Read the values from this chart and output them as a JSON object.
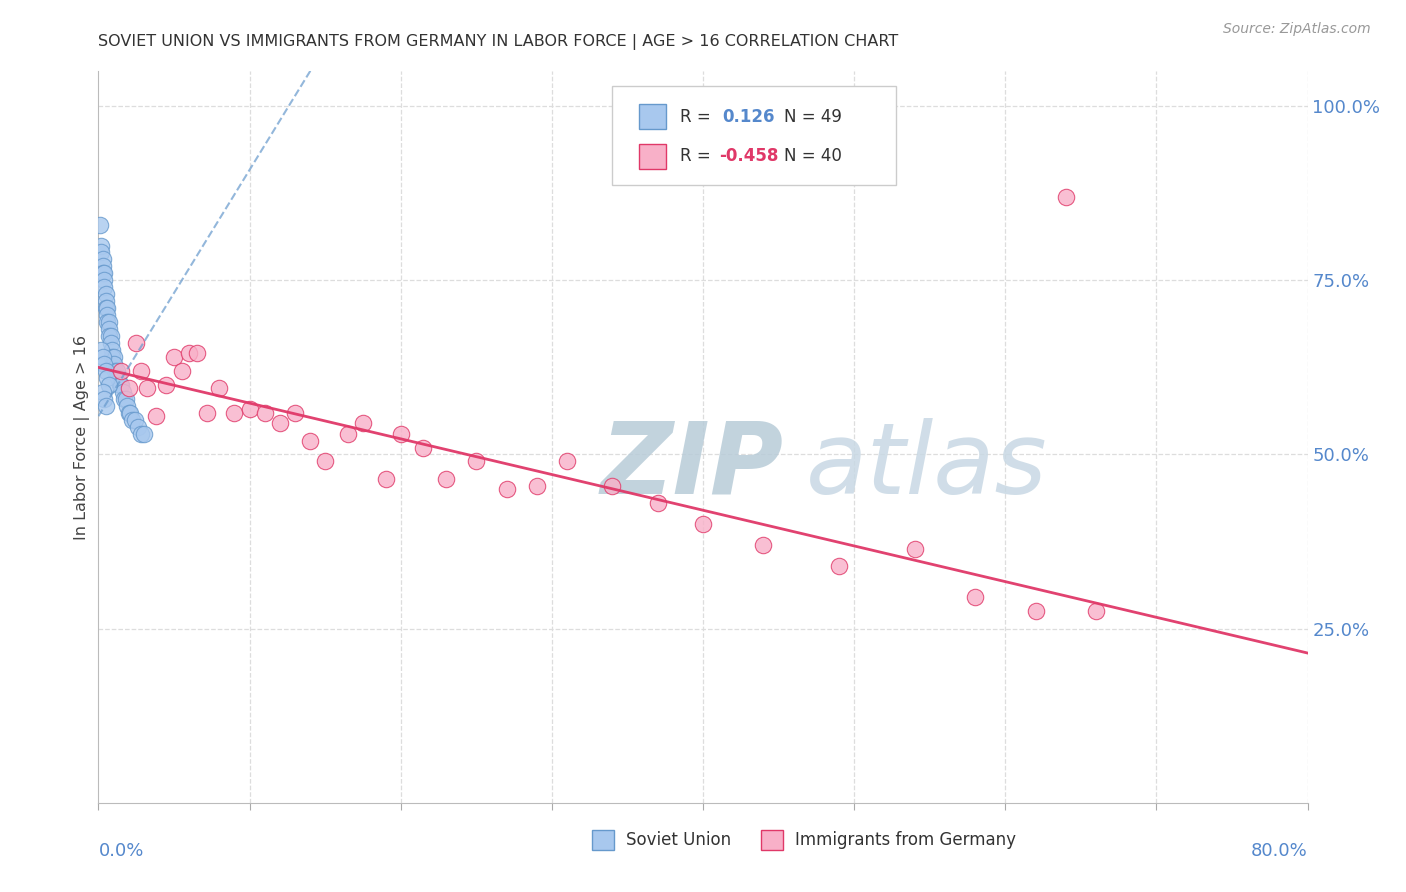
{
  "title": "SOVIET UNION VS IMMIGRANTS FROM GERMANY IN LABOR FORCE | AGE > 16 CORRELATION CHART",
  "source": "Source: ZipAtlas.com",
  "ylabel": "In Labor Force | Age > 16",
  "R1": 0.126,
  "N1": 49,
  "R2": -0.458,
  "N2": 40,
  "soviet_color": "#a8c8ee",
  "germany_color": "#f8b0c8",
  "trend1_color": "#6699cc",
  "trend2_color": "#e03868",
  "watermark_color": "#ccdde8",
  "xmin": 0.0,
  "xmax": 0.8,
  "ymin": 0.0,
  "ymax": 1.05,
  "right_ytick_vals": [
    0.25,
    0.5,
    0.75,
    1.0
  ],
  "right_ytick_labels": [
    "25.0%",
    "50.0%",
    "75.0%",
    "100.0%"
  ],
  "grid_color": "#dddddd",
  "soviet_x": [
    0.001,
    0.002,
    0.002,
    0.003,
    0.003,
    0.003,
    0.004,
    0.004,
    0.004,
    0.005,
    0.005,
    0.005,
    0.006,
    0.006,
    0.006,
    0.007,
    0.007,
    0.007,
    0.008,
    0.008,
    0.009,
    0.009,
    0.01,
    0.01,
    0.011,
    0.012,
    0.013,
    0.014,
    0.015,
    0.016,
    0.017,
    0.018,
    0.019,
    0.02,
    0.021,
    0.022,
    0.024,
    0.026,
    0.028,
    0.03,
    0.002,
    0.003,
    0.004,
    0.005,
    0.006,
    0.007,
    0.003,
    0.004,
    0.005
  ],
  "soviet_y": [
    0.83,
    0.8,
    0.79,
    0.78,
    0.77,
    0.76,
    0.76,
    0.75,
    0.74,
    0.73,
    0.72,
    0.71,
    0.71,
    0.7,
    0.69,
    0.69,
    0.68,
    0.67,
    0.67,
    0.66,
    0.65,
    0.64,
    0.64,
    0.63,
    0.62,
    0.62,
    0.61,
    0.6,
    0.6,
    0.59,
    0.58,
    0.58,
    0.57,
    0.56,
    0.56,
    0.55,
    0.55,
    0.54,
    0.53,
    0.53,
    0.65,
    0.64,
    0.63,
    0.62,
    0.61,
    0.6,
    0.59,
    0.58,
    0.57
  ],
  "germany_x": [
    0.015,
    0.02,
    0.025,
    0.028,
    0.032,
    0.038,
    0.045,
    0.05,
    0.055,
    0.06,
    0.065,
    0.072,
    0.08,
    0.09,
    0.1,
    0.11,
    0.12,
    0.13,
    0.14,
    0.15,
    0.165,
    0.175,
    0.19,
    0.2,
    0.215,
    0.23,
    0.25,
    0.27,
    0.29,
    0.31,
    0.34,
    0.37,
    0.4,
    0.44,
    0.49,
    0.54,
    0.58,
    0.62,
    0.64,
    0.66
  ],
  "germany_y": [
    0.62,
    0.595,
    0.66,
    0.62,
    0.595,
    0.555,
    0.6,
    0.64,
    0.62,
    0.645,
    0.645,
    0.56,
    0.595,
    0.56,
    0.565,
    0.56,
    0.545,
    0.56,
    0.52,
    0.49,
    0.53,
    0.545,
    0.465,
    0.53,
    0.51,
    0.465,
    0.49,
    0.45,
    0.455,
    0.49,
    0.455,
    0.43,
    0.4,
    0.37,
    0.34,
    0.365,
    0.295,
    0.275,
    0.87,
    0.275
  ],
  "trend1_x0": 0.0,
  "trend1_y0": 0.555,
  "trend1_x1": 0.14,
  "trend1_y1": 1.05,
  "trend2_x0": 0.0,
  "trend2_y0": 0.625,
  "trend2_x1": 0.8,
  "trend2_y1": 0.215
}
